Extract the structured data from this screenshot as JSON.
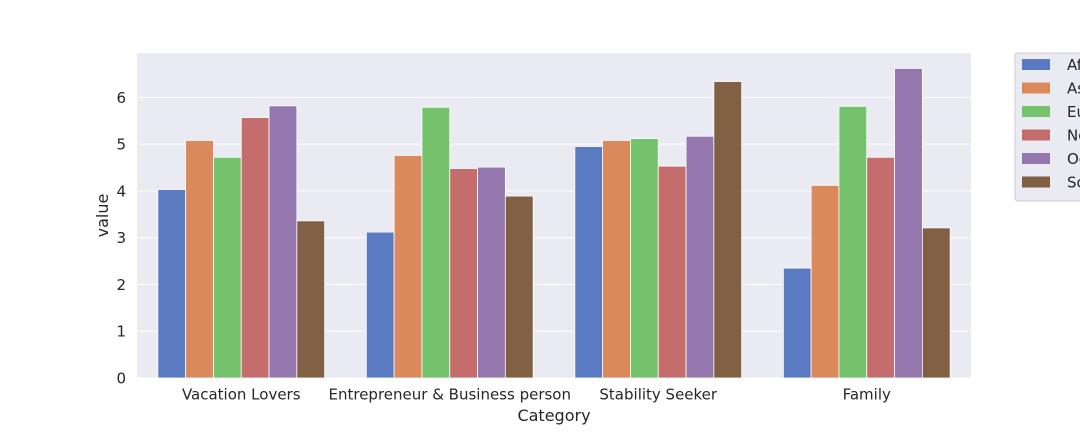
{
  "chart_data": {
    "type": "bar",
    "title": "",
    "xlabel": "Category",
    "ylabel": "value",
    "ylim": [
      0,
      6.95
    ],
    "yticks": [
      "0",
      "1",
      "2",
      "3",
      "4",
      "5",
      "6"
    ],
    "grid": true,
    "legend_position": "outside-right",
    "categories": [
      "Vacation Lovers",
      "Entrepreneur & Business person",
      "Stability Seeker",
      "Family"
    ],
    "series": [
      {
        "name": "Af",
        "color": "#5a7bc2",
        "values": [
          4.03,
          3.12,
          4.95,
          2.35
        ]
      },
      {
        "name": "As",
        "color": "#d9895c",
        "values": [
          5.08,
          4.76,
          5.08,
          4.12
        ]
      },
      {
        "name": "Eu",
        "color": "#74c26c",
        "values": [
          4.72,
          5.79,
          5.12,
          5.81
        ]
      },
      {
        "name": "No",
        "color": "#c56c6c",
        "values": [
          5.57,
          4.48,
          4.53,
          4.72
        ]
      },
      {
        "name": "Oc",
        "color": "#9478ad",
        "values": [
          5.82,
          4.51,
          5.17,
          6.62
        ]
      },
      {
        "name": "So",
        "color": "#816043",
        "values": [
          3.36,
          3.89,
          6.34,
          3.21
        ]
      }
    ],
    "colors": {
      "plot_background": "#eaeaf2",
      "grid": "#ffffff",
      "text": "#262626"
    }
  }
}
